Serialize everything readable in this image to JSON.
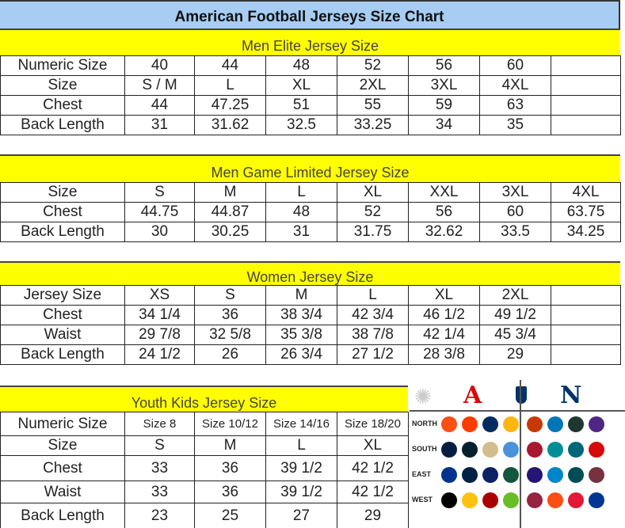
{
  "title": "American Football Jerseys Size Chart",
  "colors": {
    "title_bg": "#a7cdf2",
    "section_bg": "#ffff00",
    "afc_red": "#d50a0a",
    "nfc_blue": "#013369"
  },
  "men_elite": {
    "heading": "Men Elite Jersey Size",
    "rows": [
      [
        "Numeric Size",
        "40",
        "44",
        "48",
        "52",
        "56",
        "60",
        ""
      ],
      [
        "Size",
        "S / M",
        "L",
        "XL",
        "2XL",
        "3XL",
        "4XL",
        ""
      ],
      [
        "Chest",
        "44",
        "47.25",
        "51",
        "55",
        "59",
        "63",
        ""
      ],
      [
        "Back Length",
        "31",
        "31.62",
        "32.5",
        "33.25",
        "34",
        "35",
        ""
      ]
    ]
  },
  "men_game": {
    "heading": "Men Game Limited Jersey Size",
    "rows": [
      [
        "Size",
        "S",
        "M",
        "L",
        "XL",
        "XXL",
        "3XL",
        "4XL"
      ],
      [
        "Chest",
        "44.75",
        "44.87",
        "48",
        "52",
        "56",
        "60",
        "63.75"
      ],
      [
        "Back Length",
        "30",
        "30.25",
        "31",
        "31.75",
        "32.62",
        "33.5",
        "34.25"
      ]
    ]
  },
  "women": {
    "heading": "Women Jersey Size",
    "rows": [
      [
        "Jersey Size",
        "XS",
        "S",
        "M",
        "L",
        "XL",
        "2XL",
        ""
      ],
      [
        "Chest",
        "34 1/4",
        "36",
        "38 3/4",
        "42 3/4",
        "46 1/2",
        "49 1/2",
        ""
      ],
      [
        "Waist",
        "29 7/8",
        "32 5/8",
        "35 3/8",
        "38 7/8",
        "42 1/4",
        "45 3/4",
        ""
      ],
      [
        "Back Length",
        "24 1/2",
        "26",
        "26 3/4",
        "27 1/2",
        "28 3/8",
        "29",
        ""
      ]
    ]
  },
  "youth": {
    "heading": "Youth Kids Jersey Size",
    "rows": [
      [
        "Numeric Size",
        "Size 8",
        "Size 10/12",
        "Size 14/16",
        "Size 18/20"
      ],
      [
        "Size",
        "S",
        "M",
        "L",
        "XL"
      ],
      [
        "Chest",
        "33",
        "36",
        "39 1/2",
        "42 1/2"
      ],
      [
        "Waist",
        "33",
        "36",
        "39 1/2",
        "42 1/2"
      ],
      [
        "Back Length",
        "23",
        "25",
        "27",
        "29"
      ]
    ]
  },
  "logos": {
    "afc_letter": "A",
    "nfc_letter": "N",
    "divisions": [
      "NORTH",
      "SOUTH",
      "EAST",
      "WEST"
    ],
    "afc_team_colors": [
      [
        "#fb4f14",
        "#ff3c00",
        "#002c5f",
        "#ffb612"
      ],
      [
        "#041e42",
        "#03202f",
        "#d3bc8d",
        "#4b92db"
      ],
      [
        "#00338d",
        "#002244",
        "#0b2265",
        "#125740"
      ],
      [
        "#000000",
        "#ffc20e",
        "#aa0000",
        "#69be28"
      ]
    ],
    "nfc_team_colors": [
      [
        "#c83803",
        "#0076b6",
        "#203731",
        "#4f2683"
      ],
      [
        "#a71930",
        "#008e97",
        "#006778",
        "#d50a0a"
      ],
      [
        "#241773",
        "#0085ca",
        "#004c54",
        "#773141"
      ],
      [
        "#97233f",
        "#fb4f14",
        "#e31837",
        "#003594"
      ]
    ]
  }
}
